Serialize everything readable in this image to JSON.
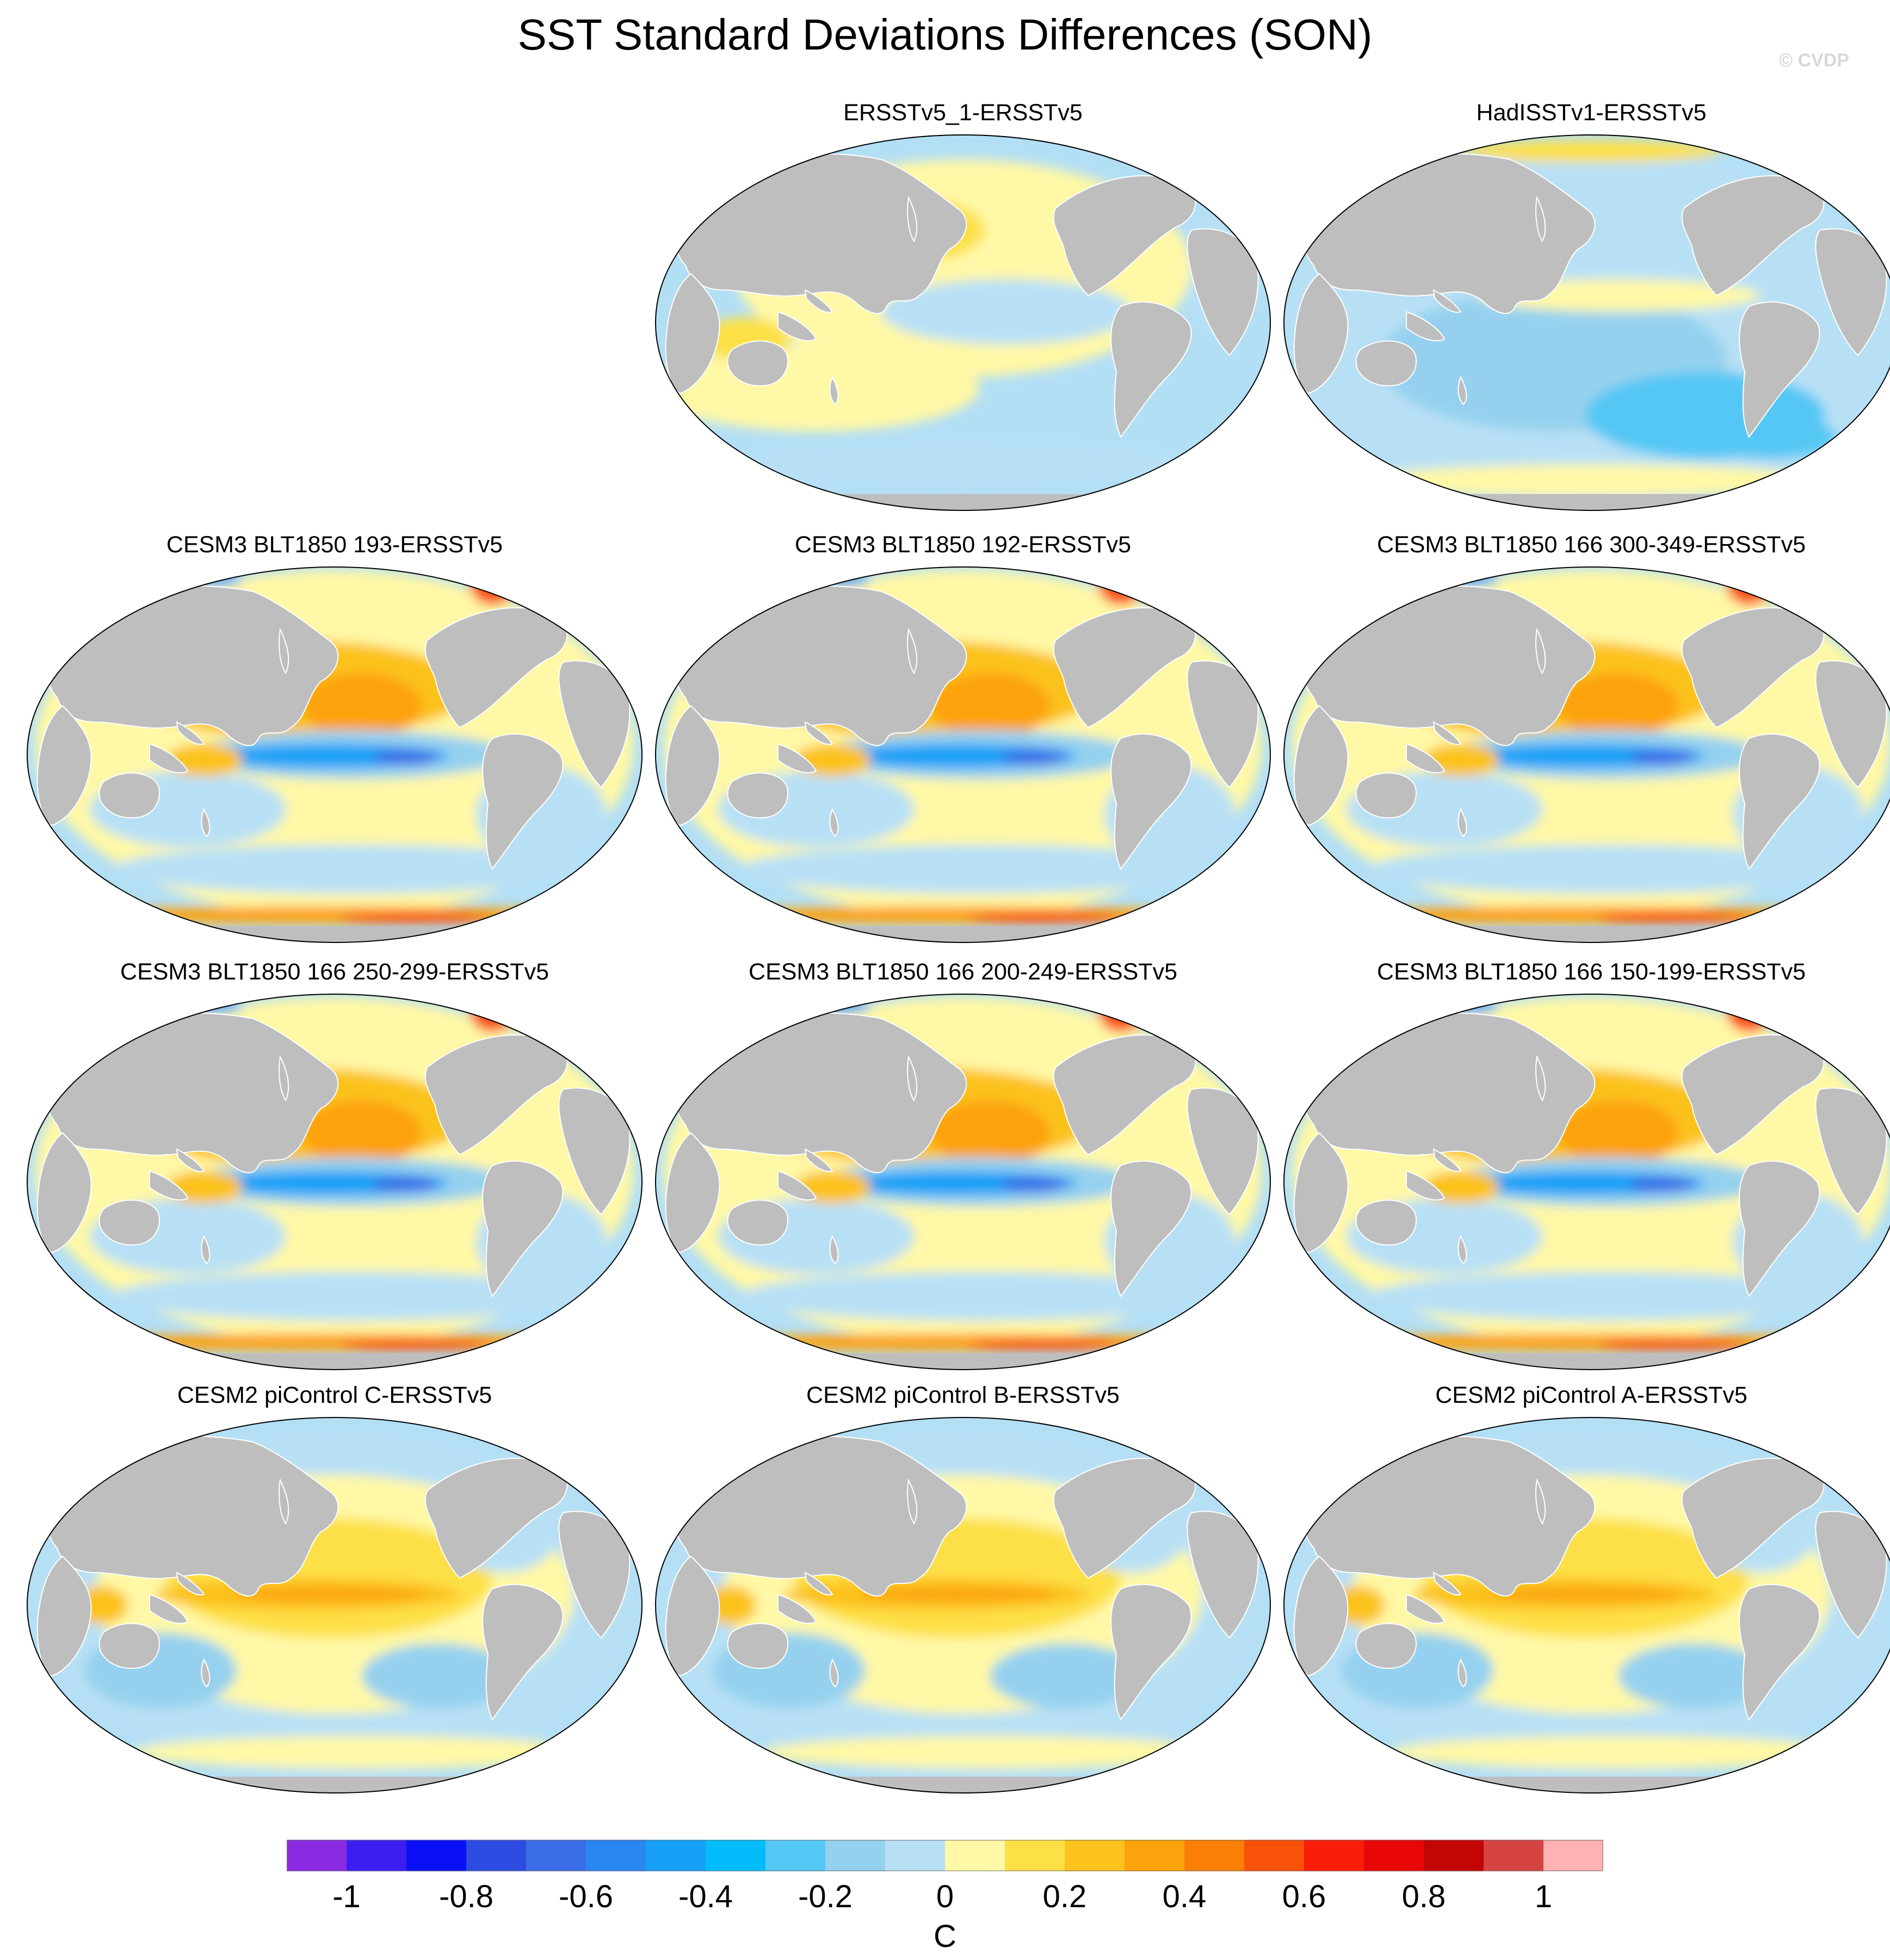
{
  "title": "SST Standard Deviations Differences (SON)",
  "watermark": "© CVDP",
  "colors": {
    "land": "#bebebe",
    "ocean_background": "#b3dff5"
  },
  "panels": [
    {
      "title": "ERSSTv5_1-ERSSTv5",
      "pattern": "near-zero-mixed"
    },
    {
      "title": "HadISSTv1-ERSSTv5",
      "pattern": "mostly-negative"
    },
    {
      "title": "CESM3 BLT1850 193-ERSSTv5",
      "pattern": "cold-equatorial-pacific"
    },
    {
      "title": "CESM3 BLT1850 192-ERSSTv5",
      "pattern": "cold-equatorial-pacific"
    },
    {
      "title": "CESM3 BLT1850 166 300-349-ERSSTv5",
      "pattern": "cold-equatorial-pacific"
    },
    {
      "title": "CESM3 BLT1850 166 250-299-ERSSTv5",
      "pattern": "cold-equatorial-pacific"
    },
    {
      "title": "CESM3 BLT1850 166 200-249-ERSSTv5",
      "pattern": "cold-equatorial-pacific"
    },
    {
      "title": "CESM3 BLT1850 166 150-199-ERSSTv5",
      "pattern": "cold-equatorial-pacific"
    },
    {
      "title": "CESM2 piControl C-ERSSTv5",
      "pattern": "warm-equatorial-pacific"
    },
    {
      "title": "CESM2 piControl B-ERSSTv5",
      "pattern": "warm-equatorial-pacific"
    },
    {
      "title": "CESM2 piControl A-ERSSTv5",
      "pattern": "warm-equatorial-pacific"
    }
  ],
  "colorbar": {
    "unit": "C",
    "colors": [
      "#8a2be2",
      "#3c1df0",
      "#0a10f5",
      "#2c4be0",
      "#3b6ee6",
      "#2a86f0",
      "#16a0f7",
      "#03bcfb",
      "#55c7f4",
      "#95d1ef",
      "#b8e0f5",
      "#fff8a6",
      "#fde046",
      "#fcc21e",
      "#fca20a",
      "#fb7f06",
      "#f9500a",
      "#f81e0a",
      "#e80606",
      "#c20505",
      "#d64343",
      "#fdb3b3"
    ],
    "tick_labels": [
      "-1",
      "-0.8",
      "-0.6",
      "-0.4",
      "-0.2",
      "0",
      "0.2",
      "0.4",
      "0.6",
      "0.8",
      "1"
    ]
  }
}
